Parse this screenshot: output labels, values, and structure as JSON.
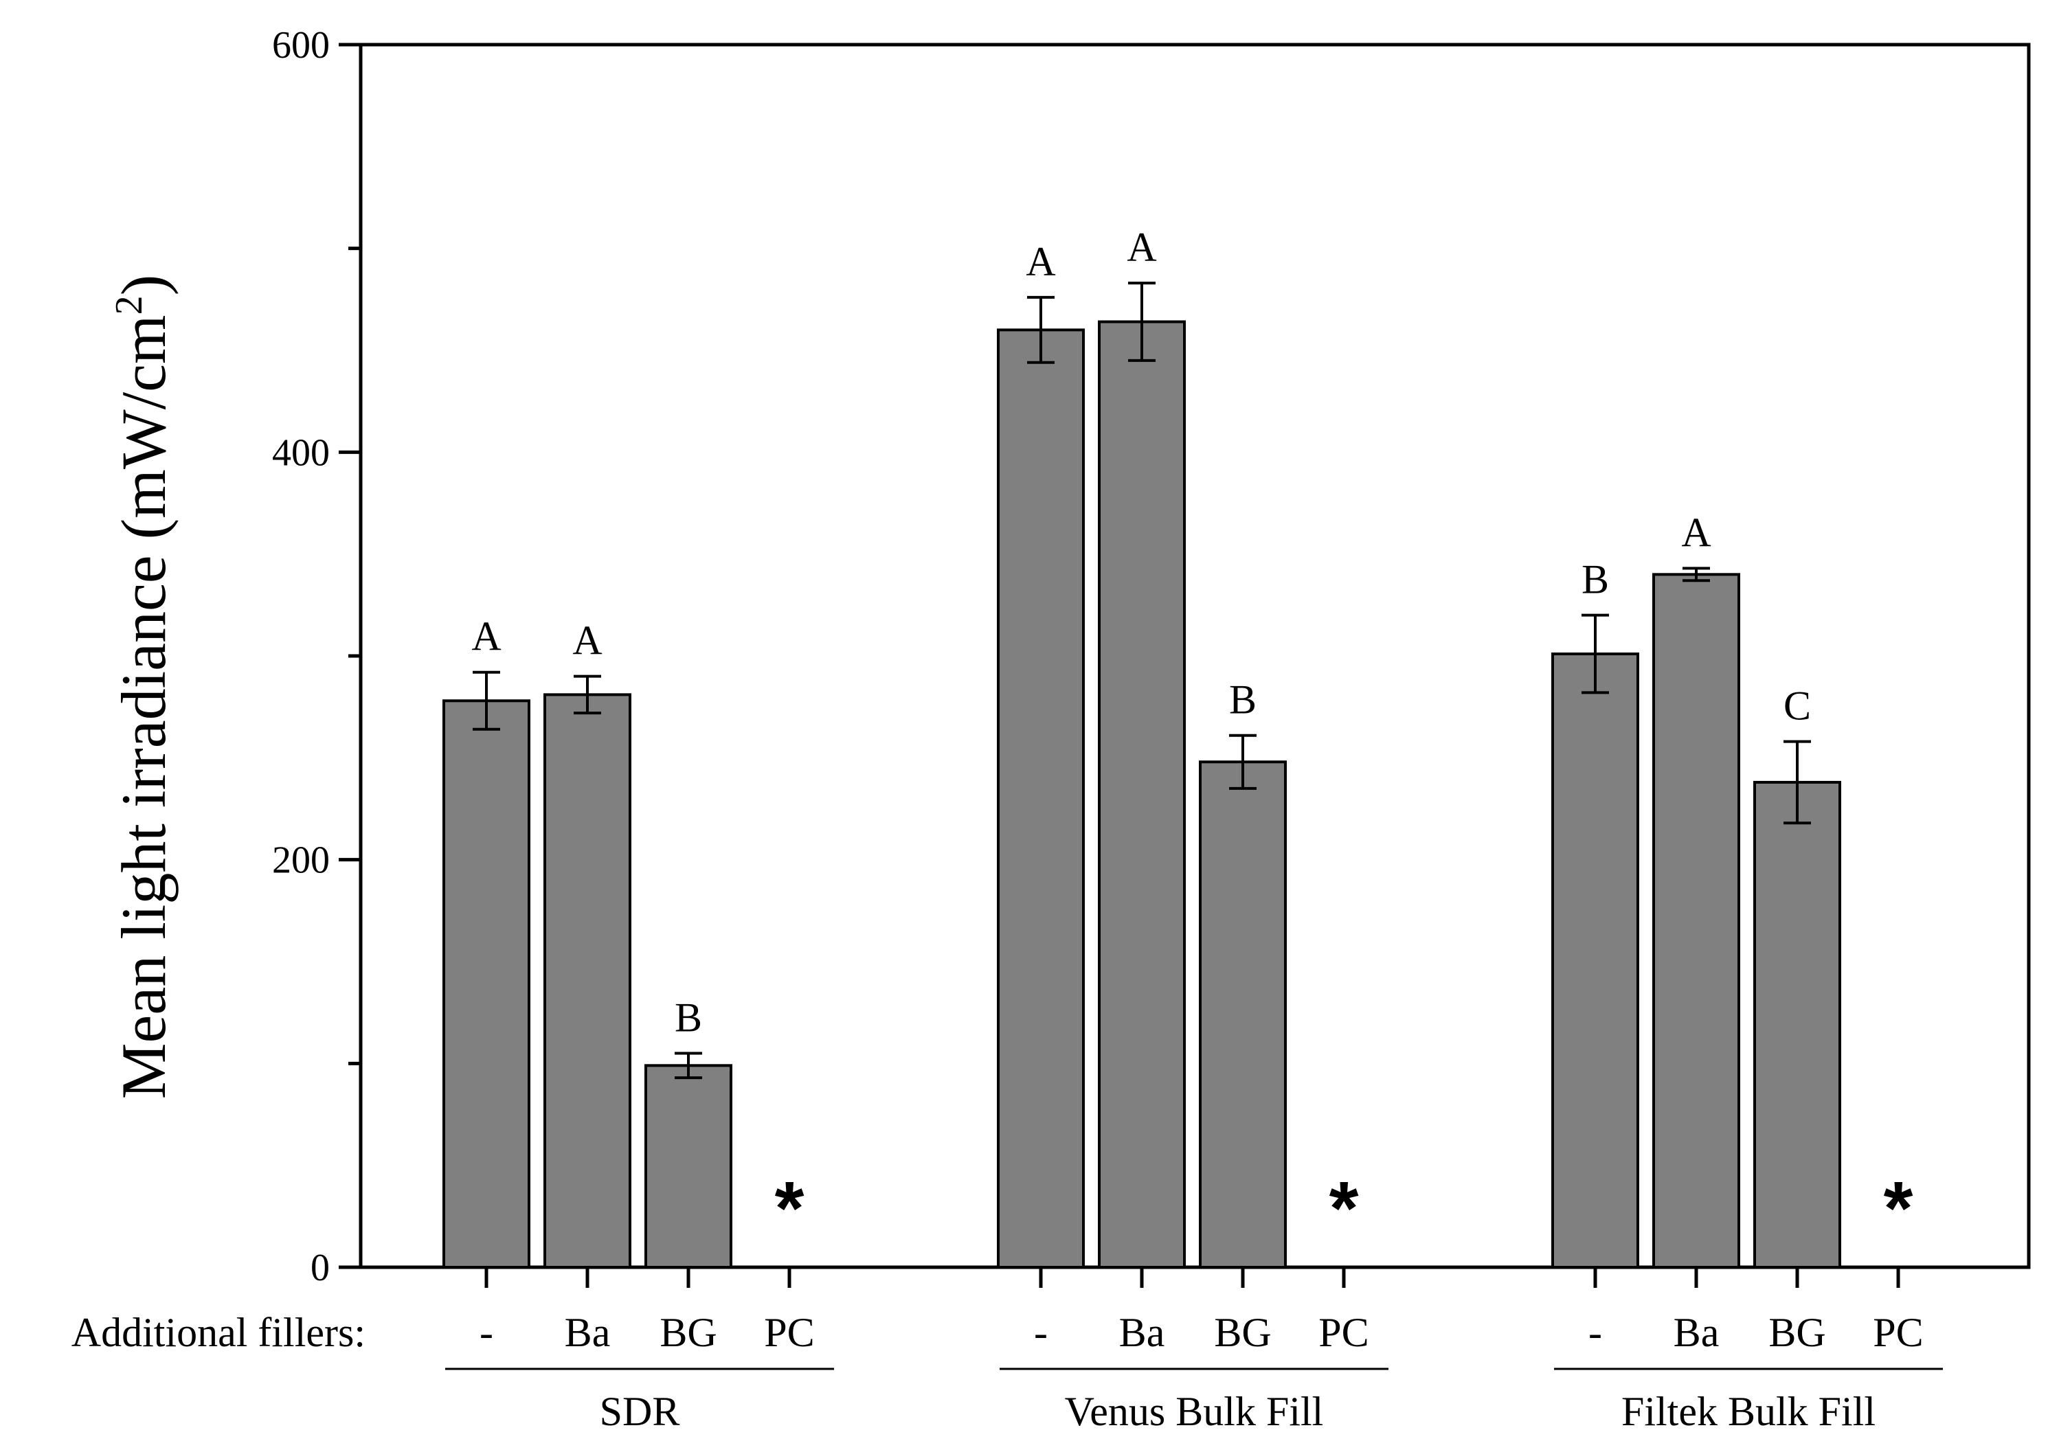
{
  "chart_data": {
    "type": "bar",
    "title": "",
    "ylabel": "Mean light irradiance (mW/cm",
    "ylabel_sup": "2",
    "ylabel_close": ")",
    "xlabel": "",
    "ylim": [
      0,
      600
    ],
    "yticks": [
      0,
      200,
      400,
      600
    ],
    "filler_row_label": "Additional fillers:",
    "bar_color": "#808080",
    "groups": [
      {
        "name": "SDR",
        "bars": [
          {
            "category": "-",
            "value": 278,
            "error": 14,
            "letter": "A"
          },
          {
            "category": "Ba",
            "value": 281,
            "error": 9,
            "letter": "A"
          },
          {
            "category": "BG",
            "value": 99,
            "error": 6,
            "letter": "B"
          },
          {
            "category": "PC",
            "value": null,
            "error": null,
            "letter": "*"
          }
        ]
      },
      {
        "name": "Venus Bulk Fill",
        "bars": [
          {
            "category": "-",
            "value": 460,
            "error": 16,
            "letter": "A"
          },
          {
            "category": "Ba",
            "value": 464,
            "error": 19,
            "letter": "A"
          },
          {
            "category": "BG",
            "value": 248,
            "error": 13,
            "letter": "B"
          },
          {
            "category": "PC",
            "value": null,
            "error": null,
            "letter": "*"
          }
        ]
      },
      {
        "name": "Filtek Bulk Fill",
        "bars": [
          {
            "category": "-",
            "value": 301,
            "error": 19,
            "letter": "B"
          },
          {
            "category": "Ba",
            "value": 340,
            "error": 3,
            "letter": "A"
          },
          {
            "category": "BG",
            "value": 238,
            "error": 20,
            "letter": "C"
          },
          {
            "category": "PC",
            "value": null,
            "error": null,
            "letter": "*"
          }
        ]
      }
    ]
  }
}
